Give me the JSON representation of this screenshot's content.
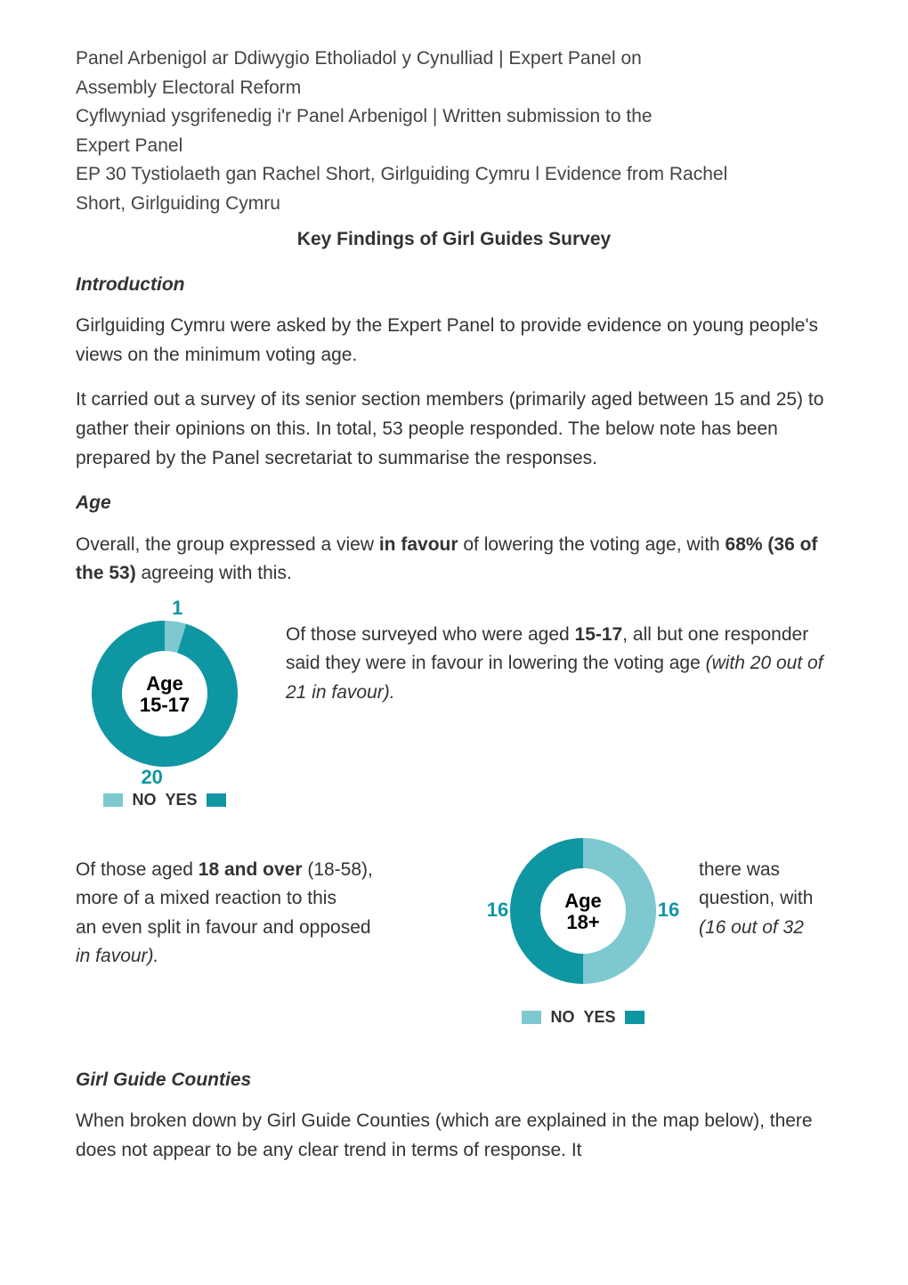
{
  "header": {
    "line1": "Panel Arbenigol ar Ddiwygio Etholiadol y Cynulliad | Expert Panel on",
    "line2": "Assembly Electoral Reform",
    "line3": "Cyflwyniad ysgrifenedig i'r Panel Arbenigol | Written submission to the",
    "line4": "Expert Panel",
    "line5": "EP 30 Tystiolaeth gan Rachel Short, Girlguiding Cymru l Evidence from Rachel",
    "line6": "Short, Girlguiding Cymru"
  },
  "title": "Key Findings of Girl Guides Survey",
  "sections": {
    "intro": {
      "heading": "Introduction",
      "p1": "Girlguiding Cymru were asked by the Expert Panel to provide evidence on young people's views on the minimum voting age.",
      "p2": "It carried out a survey of its senior section members (primarily aged between 15 and 25) to gather their opinions on this. In total, 53 people responded. The below note has been prepared by the Panel secretariat to summarise the responses."
    },
    "age": {
      "heading": "Age",
      "p1_a": "Overall, the group expressed a view ",
      "p1_b": "in favour",
      "p1_c": " of lowering the voting age, with ",
      "p1_d": "68% (36 of the 53)",
      "p1_e": " agreeing with this.",
      "p2_a": "Of those surveyed who were aged ",
      "p2_b": "15-17",
      "p2_c": ", all but one responder said they were in favour in lowering the voting age ",
      "p2_d": "(with 20 out of 21 in favour).",
      "p3_a": "Of those aged ",
      "p3_b": "18 and over",
      "p3_c": " (18-58),",
      "p3_r1": "there was",
      "p3_d": "more of a mixed reaction to this",
      "p3_r2": "question, with",
      "p3_e": "an even split in favour and opposed",
      "p3_f": "(16 out of 32",
      "p3_g": "in favour)."
    },
    "counties": {
      "heading": "Girl Guide Counties",
      "p1": "When broken down by Girl Guide Counties (which are explained in the map below), there does not appear to be any clear trend in terms of response. It"
    }
  },
  "charts": {
    "donut_15_17": {
      "title_line1": "Age",
      "title_line2": "15-17",
      "no_value": 1,
      "yes_value": 20,
      "no_color": "#7ec8cf",
      "yes_color": "#0f96a3",
      "bg_color": "#ffffff",
      "label_color": "#0f96a3",
      "outer_r": 82,
      "inner_r": 48,
      "svg_size": 200,
      "legend_no": "NO",
      "legend_yes": "YES"
    },
    "donut_18": {
      "title_line1": "Age",
      "title_line2": "18+",
      "no_value": 16,
      "yes_value": 16,
      "no_color": "#7ec8cf",
      "yes_color": "#0f96a3",
      "bg_color": "#ffffff",
      "label_color": "#0f96a3",
      "outer_r": 82,
      "inner_r": 48,
      "svg_size": 200,
      "legend_no": "NO",
      "legend_yes": "YES"
    }
  }
}
